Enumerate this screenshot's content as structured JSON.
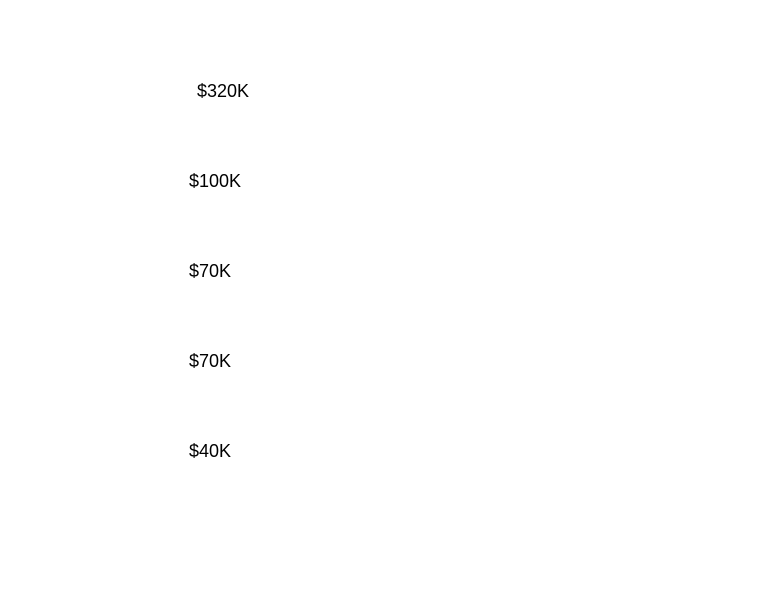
{
  "values": [
    {
      "label": "$320K"
    },
    {
      "label": "$100K"
    },
    {
      "label": "$70K"
    },
    {
      "label": "$70K"
    },
    {
      "label": "$40K"
    }
  ]
}
